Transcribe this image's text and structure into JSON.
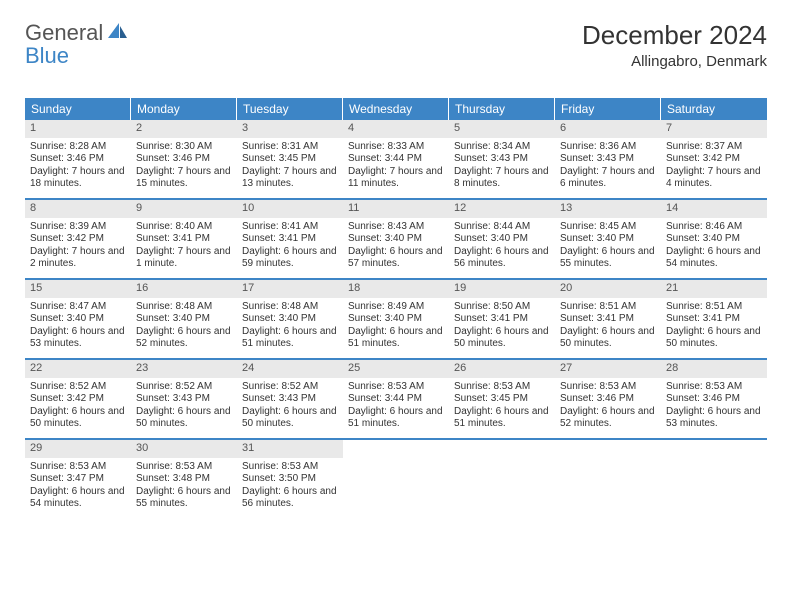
{
  "logo": {
    "part1": "General",
    "part2": "Blue"
  },
  "title": "December 2024",
  "location": "Allingabro, Denmark",
  "colors": {
    "header_bg": "#3d85c6",
    "header_text": "#ffffff",
    "daynum_bg": "#e9e9e9",
    "text": "#333333",
    "row_rule": "#3d85c6"
  },
  "fonts": {
    "title_size": 26,
    "location_size": 15,
    "weekday_size": 12,
    "daynum_size": 11,
    "body_size": 10
  },
  "weekdays": [
    "Sunday",
    "Monday",
    "Tuesday",
    "Wednesday",
    "Thursday",
    "Friday",
    "Saturday"
  ],
  "weeks": [
    [
      {
        "n": "1",
        "sunrise": "8:28 AM",
        "sunset": "3:46 PM",
        "daylight": "7 hours and 18 minutes."
      },
      {
        "n": "2",
        "sunrise": "8:30 AM",
        "sunset": "3:46 PM",
        "daylight": "7 hours and 15 minutes."
      },
      {
        "n": "3",
        "sunrise": "8:31 AM",
        "sunset": "3:45 PM",
        "daylight": "7 hours and 13 minutes."
      },
      {
        "n": "4",
        "sunrise": "8:33 AM",
        "sunset": "3:44 PM",
        "daylight": "7 hours and 11 minutes."
      },
      {
        "n": "5",
        "sunrise": "8:34 AM",
        "sunset": "3:43 PM",
        "daylight": "7 hours and 8 minutes."
      },
      {
        "n": "6",
        "sunrise": "8:36 AM",
        "sunset": "3:43 PM",
        "daylight": "7 hours and 6 minutes."
      },
      {
        "n": "7",
        "sunrise": "8:37 AM",
        "sunset": "3:42 PM",
        "daylight": "7 hours and 4 minutes."
      }
    ],
    [
      {
        "n": "8",
        "sunrise": "8:39 AM",
        "sunset": "3:42 PM",
        "daylight": "7 hours and 2 minutes."
      },
      {
        "n": "9",
        "sunrise": "8:40 AM",
        "sunset": "3:41 PM",
        "daylight": "7 hours and 1 minute."
      },
      {
        "n": "10",
        "sunrise": "8:41 AM",
        "sunset": "3:41 PM",
        "daylight": "6 hours and 59 minutes."
      },
      {
        "n": "11",
        "sunrise": "8:43 AM",
        "sunset": "3:40 PM",
        "daylight": "6 hours and 57 minutes."
      },
      {
        "n": "12",
        "sunrise": "8:44 AM",
        "sunset": "3:40 PM",
        "daylight": "6 hours and 56 minutes."
      },
      {
        "n": "13",
        "sunrise": "8:45 AM",
        "sunset": "3:40 PM",
        "daylight": "6 hours and 55 minutes."
      },
      {
        "n": "14",
        "sunrise": "8:46 AM",
        "sunset": "3:40 PM",
        "daylight": "6 hours and 54 minutes."
      }
    ],
    [
      {
        "n": "15",
        "sunrise": "8:47 AM",
        "sunset": "3:40 PM",
        "daylight": "6 hours and 53 minutes."
      },
      {
        "n": "16",
        "sunrise": "8:48 AM",
        "sunset": "3:40 PM",
        "daylight": "6 hours and 52 minutes."
      },
      {
        "n": "17",
        "sunrise": "8:48 AM",
        "sunset": "3:40 PM",
        "daylight": "6 hours and 51 minutes."
      },
      {
        "n": "18",
        "sunrise": "8:49 AM",
        "sunset": "3:40 PM",
        "daylight": "6 hours and 51 minutes."
      },
      {
        "n": "19",
        "sunrise": "8:50 AM",
        "sunset": "3:41 PM",
        "daylight": "6 hours and 50 minutes."
      },
      {
        "n": "20",
        "sunrise": "8:51 AM",
        "sunset": "3:41 PM",
        "daylight": "6 hours and 50 minutes."
      },
      {
        "n": "21",
        "sunrise": "8:51 AM",
        "sunset": "3:41 PM",
        "daylight": "6 hours and 50 minutes."
      }
    ],
    [
      {
        "n": "22",
        "sunrise": "8:52 AM",
        "sunset": "3:42 PM",
        "daylight": "6 hours and 50 minutes."
      },
      {
        "n": "23",
        "sunrise": "8:52 AM",
        "sunset": "3:43 PM",
        "daylight": "6 hours and 50 minutes."
      },
      {
        "n": "24",
        "sunrise": "8:52 AM",
        "sunset": "3:43 PM",
        "daylight": "6 hours and 50 minutes."
      },
      {
        "n": "25",
        "sunrise": "8:53 AM",
        "sunset": "3:44 PM",
        "daylight": "6 hours and 51 minutes."
      },
      {
        "n": "26",
        "sunrise": "8:53 AM",
        "sunset": "3:45 PM",
        "daylight": "6 hours and 51 minutes."
      },
      {
        "n": "27",
        "sunrise": "8:53 AM",
        "sunset": "3:46 PM",
        "daylight": "6 hours and 52 minutes."
      },
      {
        "n": "28",
        "sunrise": "8:53 AM",
        "sunset": "3:46 PM",
        "daylight": "6 hours and 53 minutes."
      }
    ],
    [
      {
        "n": "29",
        "sunrise": "8:53 AM",
        "sunset": "3:47 PM",
        "daylight": "6 hours and 54 minutes."
      },
      {
        "n": "30",
        "sunrise": "8:53 AM",
        "sunset": "3:48 PM",
        "daylight": "6 hours and 55 minutes."
      },
      {
        "n": "31",
        "sunrise": "8:53 AM",
        "sunset": "3:50 PM",
        "daylight": "6 hours and 56 minutes."
      },
      null,
      null,
      null,
      null
    ]
  ],
  "labels": {
    "sunrise": "Sunrise:",
    "sunset": "Sunset:",
    "daylight": "Daylight:"
  }
}
